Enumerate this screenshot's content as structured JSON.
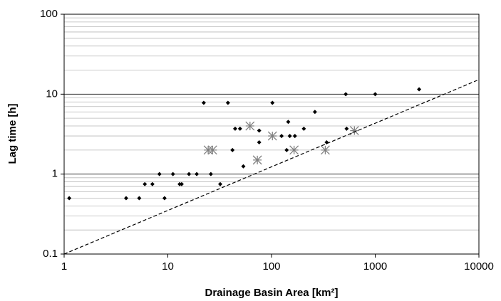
{
  "chart_data": {
    "type": "scatter",
    "xlabel": "Drainage Basin Area [km²]",
    "ylabel": "Lag time [h]",
    "xscale": "log",
    "yscale": "log",
    "xlim": [
      1,
      10000
    ],
    "ylim": [
      0.1,
      100
    ],
    "xticks": [
      1,
      10,
      100,
      1000,
      10000
    ],
    "yticks": [
      0.1,
      1,
      10,
      100
    ],
    "grid": "minor",
    "series": [
      {
        "marker": "diamond",
        "color": "#000000",
        "x": [
          1.12,
          3.96,
          5.3,
          6,
          7.1,
          8.3,
          9.3,
          11.2,
          13,
          13.6,
          16,
          19,
          22.2,
          26,
          32,
          38,
          42,
          44.6,
          49.7,
          53.5,
          76,
          76,
          102,
          125,
          140,
          145,
          150,
          168,
          205,
          262,
          340,
          520,
          530,
          1000,
          2650
        ],
        "y": [
          0.5,
          0.5,
          0.5,
          0.75,
          0.75,
          1,
          0.5,
          1,
          0.75,
          0.75,
          1,
          1,
          7.8,
          1,
          0.75,
          7.8,
          2,
          3.7,
          3.7,
          1.25,
          3.5,
          2.5,
          7.8,
          3,
          2,
          4.5,
          3,
          3,
          3.7,
          6,
          2.5,
          10,
          3.7,
          10,
          11.5
        ]
      },
      {
        "marker": "asterisk",
        "color": "#808080",
        "x": [
          24.5,
          27,
          62,
          73,
          102,
          165,
          330,
          630
        ],
        "y": [
          2,
          2,
          4,
          1.5,
          3,
          2,
          2,
          3.5
        ]
      },
      {
        "marker": "dashed-line",
        "color": "#000000",
        "x": [
          1,
          10000
        ],
        "y": [
          0.1,
          15.2
        ]
      }
    ]
  }
}
